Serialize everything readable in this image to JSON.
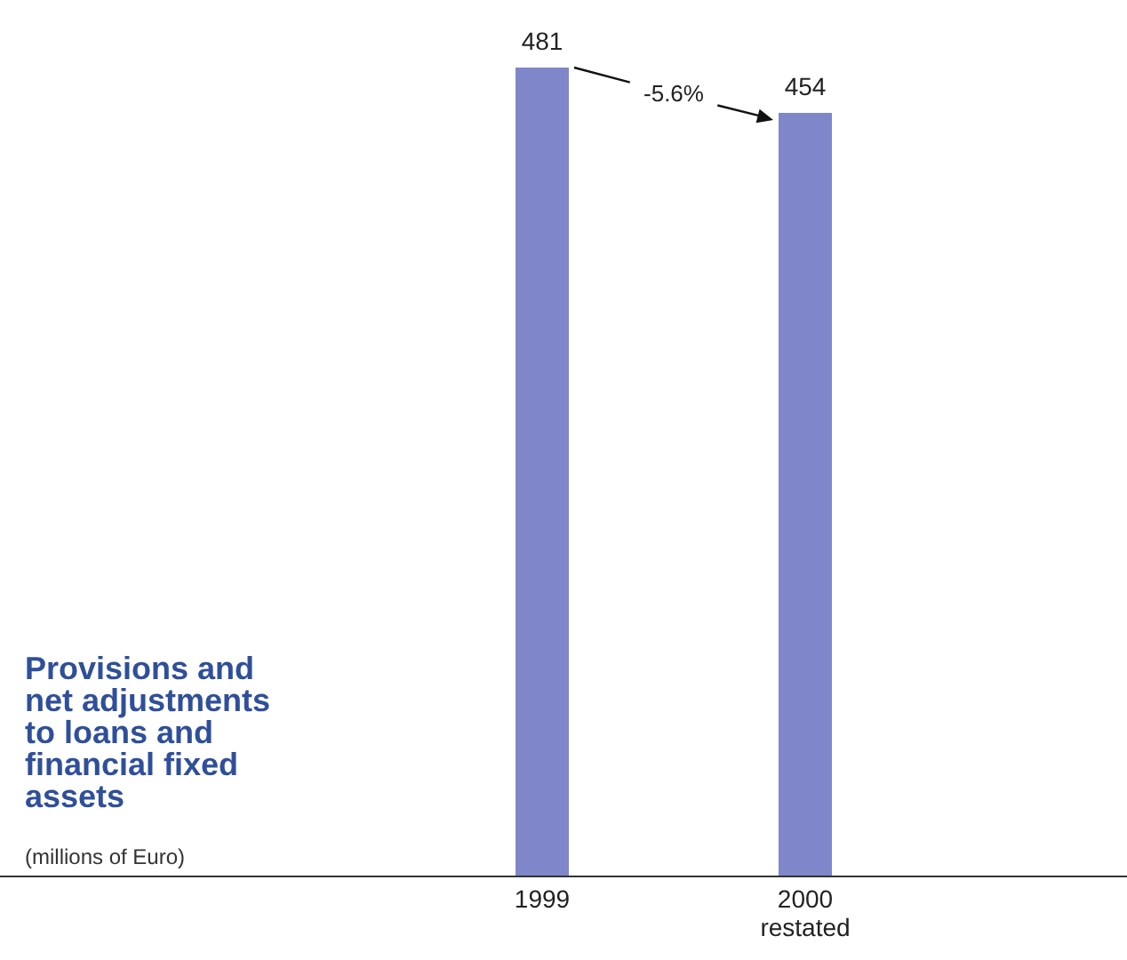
{
  "chart_data": {
    "type": "bar",
    "title": "Provisions and net adjustments to loans and financial fixed assets",
    "subtitle": "(millions of Euro)",
    "categories": [
      "1999",
      "2000 restated"
    ],
    "values": [
      481,
      454
    ],
    "color": "#7f86c9",
    "data_labels": true,
    "annotations": [
      "-5.6%"
    ]
  }
}
